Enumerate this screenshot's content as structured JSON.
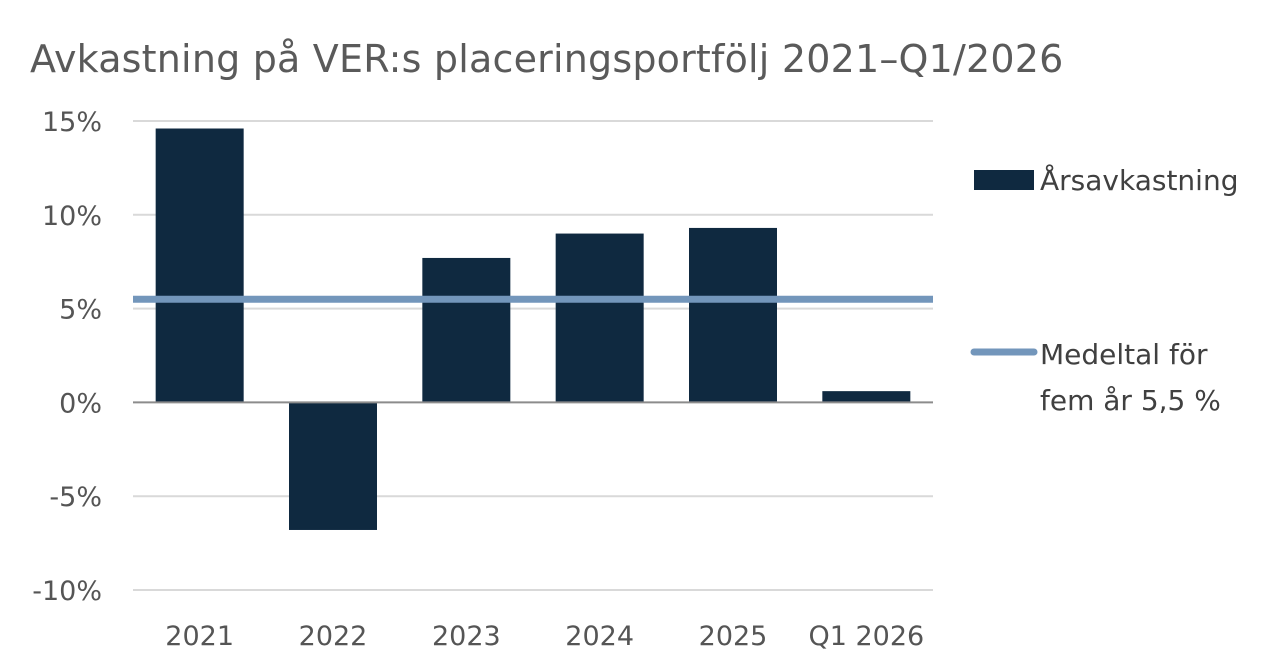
{
  "chart_data": {
    "type": "bar",
    "title": "Avkastning på VER:s placeringsportfölj 2021–Q1/2026",
    "xlabel": "",
    "ylabel": "",
    "categories": [
      "2021",
      "2022",
      "2023",
      "2024",
      "2025",
      "Q1 2026"
    ],
    "series": [
      {
        "name": "Årsavkastning",
        "type": "bar",
        "color": "#0f2940",
        "values": [
          14.6,
          -6.8,
          7.7,
          9.0,
          9.3,
          0.6
        ]
      },
      {
        "name_lines": [
          "Medeltal för",
          "fem år 5,5 %"
        ],
        "type": "line",
        "color": "#7396bb",
        "value": 5.5
      }
    ],
    "ylim": [
      -10,
      15
    ],
    "yticks": [
      15,
      10,
      5,
      0,
      -5,
      -10
    ],
    "ytick_labels": [
      "15%",
      "10%",
      "5%",
      "0%",
      "-5%",
      "-10%"
    ],
    "grid": true,
    "legend_position": "right"
  }
}
